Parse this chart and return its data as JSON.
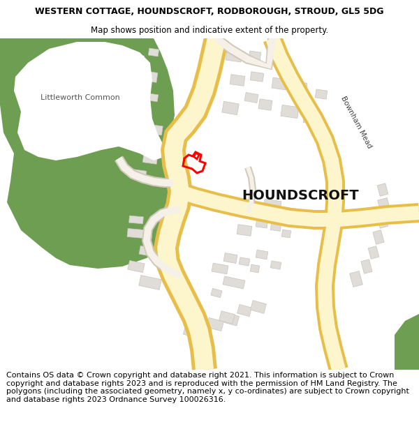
{
  "title_line1": "WESTERN COTTAGE, HOUNDSCROFT, RODBOROUGH, STROUD, GL5 5DG",
  "title_line2": "Map shows position and indicative extent of the property.",
  "footer_text": "Contains OS data © Crown copyright and database right 2021. This information is subject to Crown copyright and database rights 2023 and is reproduced with the permission of HM Land Registry. The polygons (including the associated geometry, namely x, y co-ordinates) are subject to Crown copyright and database rights 2023 Ordnance Survey 100026316.",
  "title_fontsize": 9.0,
  "footer_fontsize": 8.0,
  "map_label": "HOUNDSCROFT",
  "map_label2": "Littleworth Common",
  "map_label3": "Bownham Mead",
  "bg_color": "#ffffff",
  "map_bg": "#ffffff",
  "green_color": "#6e9e52",
  "road_fill": "#fdf6cc",
  "road_border": "#e8be4a",
  "building_fill": "#e0ddd8",
  "building_edge": "#c8c4be",
  "highlight_color": "#ff0000",
  "light_road_fill": "#f5f0e8",
  "light_road_edge": "#d0c8b8"
}
